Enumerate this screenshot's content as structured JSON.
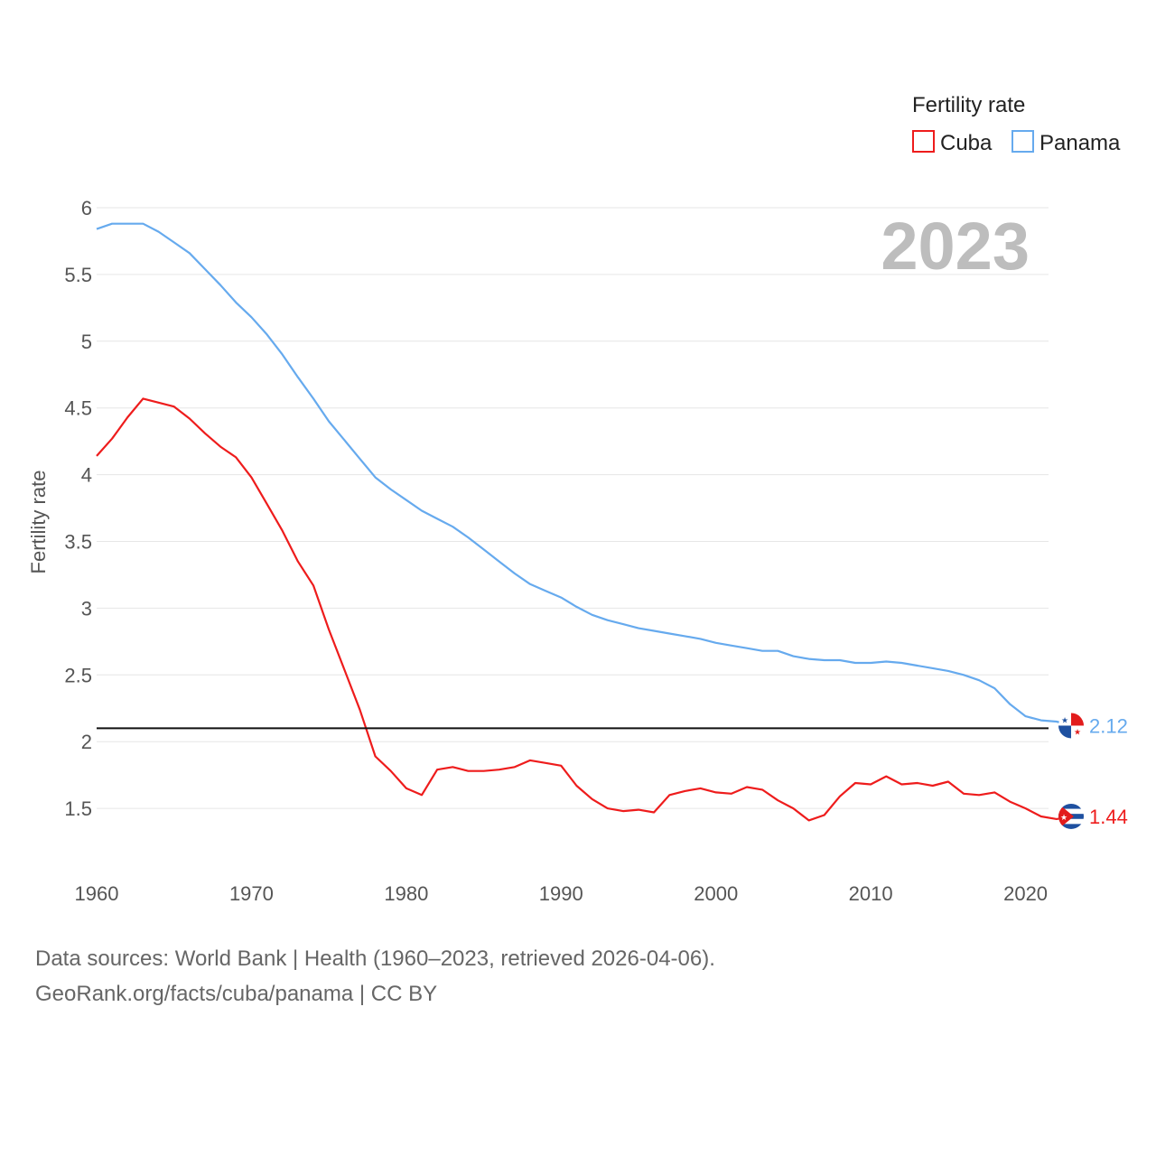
{
  "legend": {
    "title": "Fertility rate"
  },
  "year_label": "2023",
  "sources": {
    "line1": "Data sources: World Bank | Health (1960–2023, retrieved 2026-04-06).",
    "line2": "GeoRank.org/facts/cuba/panama | CC BY"
  },
  "colors": {
    "cuba": "#ee1c1c",
    "panama": "#66aaee",
    "reference": "#111111",
    "grid": "#e6e6e6"
  },
  "icons": {
    "cuba": "cuba-flag-icon",
    "panama": "panama-flag-icon"
  },
  "chart_data": {
    "type": "line",
    "title": "",
    "xlabel": "",
    "ylabel": "Fertility rate",
    "xlim": [
      1960,
      2023
    ],
    "ylim": [
      1.0,
      6.0
    ],
    "xticks": [
      1960,
      1970,
      1980,
      1990,
      2000,
      2010,
      2020
    ],
    "xtick_labels": [
      "1960",
      "1970",
      "1980",
      "1990",
      "2000",
      "2010",
      "2020"
    ],
    "yticks": [
      1.5,
      2,
      2.5,
      3,
      3.5,
      4,
      4.5,
      5,
      5.5,
      6
    ],
    "ytick_labels": [
      "1.5",
      "2",
      "2.5",
      "3",
      "3.5",
      "4",
      "4.5",
      "5",
      "5.5",
      "6"
    ],
    "reference_line": 2.1,
    "x": [
      1960,
      1961,
      1962,
      1963,
      1964,
      1965,
      1966,
      1967,
      1968,
      1969,
      1970,
      1971,
      1972,
      1973,
      1974,
      1975,
      1976,
      1977,
      1978,
      1979,
      1980,
      1981,
      1982,
      1983,
      1984,
      1985,
      1986,
      1987,
      1988,
      1989,
      1990,
      1991,
      1992,
      1993,
      1994,
      1995,
      1996,
      1997,
      1998,
      1999,
      2000,
      2001,
      2002,
      2003,
      2004,
      2005,
      2006,
      2007,
      2008,
      2009,
      2010,
      2011,
      2012,
      2013,
      2014,
      2015,
      2016,
      2017,
      2018,
      2019,
      2020,
      2021,
      2022,
      2023
    ],
    "series": [
      {
        "name": "Cuba",
        "end_label": "1.44",
        "values": [
          4.14,
          4.27,
          4.43,
          4.57,
          4.54,
          4.51,
          4.42,
          4.31,
          4.21,
          4.13,
          3.98,
          3.78,
          3.58,
          3.35,
          3.17,
          2.84,
          2.54,
          2.24,
          1.89,
          1.78,
          1.65,
          1.6,
          1.79,
          1.81,
          1.78,
          1.78,
          1.79,
          1.81,
          1.86,
          1.84,
          1.82,
          1.67,
          1.57,
          1.5,
          1.48,
          1.49,
          1.47,
          1.6,
          1.63,
          1.65,
          1.62,
          1.61,
          1.66,
          1.64,
          1.56,
          1.5,
          1.41,
          1.45,
          1.59,
          1.69,
          1.68,
          1.74,
          1.68,
          1.69,
          1.67,
          1.7,
          1.61,
          1.6,
          1.62,
          1.55,
          1.5,
          1.44,
          1.42,
          1.44
        ]
      },
      {
        "name": "Panama",
        "end_label": "2.12",
        "values": [
          5.84,
          5.88,
          5.88,
          5.88,
          5.82,
          5.74,
          5.66,
          5.54,
          5.42,
          5.29,
          5.18,
          5.05,
          4.9,
          4.73,
          4.57,
          4.4,
          4.26,
          4.12,
          3.98,
          3.89,
          3.81,
          3.73,
          3.67,
          3.61,
          3.53,
          3.44,
          3.35,
          3.26,
          3.18,
          3.13,
          3.08,
          3.01,
          2.95,
          2.91,
          2.88,
          2.85,
          2.83,
          2.81,
          2.79,
          2.77,
          2.74,
          2.72,
          2.7,
          2.68,
          2.68,
          2.64,
          2.62,
          2.61,
          2.61,
          2.59,
          2.59,
          2.6,
          2.59,
          2.57,
          2.55,
          2.53,
          2.5,
          2.46,
          2.4,
          2.28,
          2.19,
          2.16,
          2.15,
          2.12
        ]
      }
    ]
  }
}
